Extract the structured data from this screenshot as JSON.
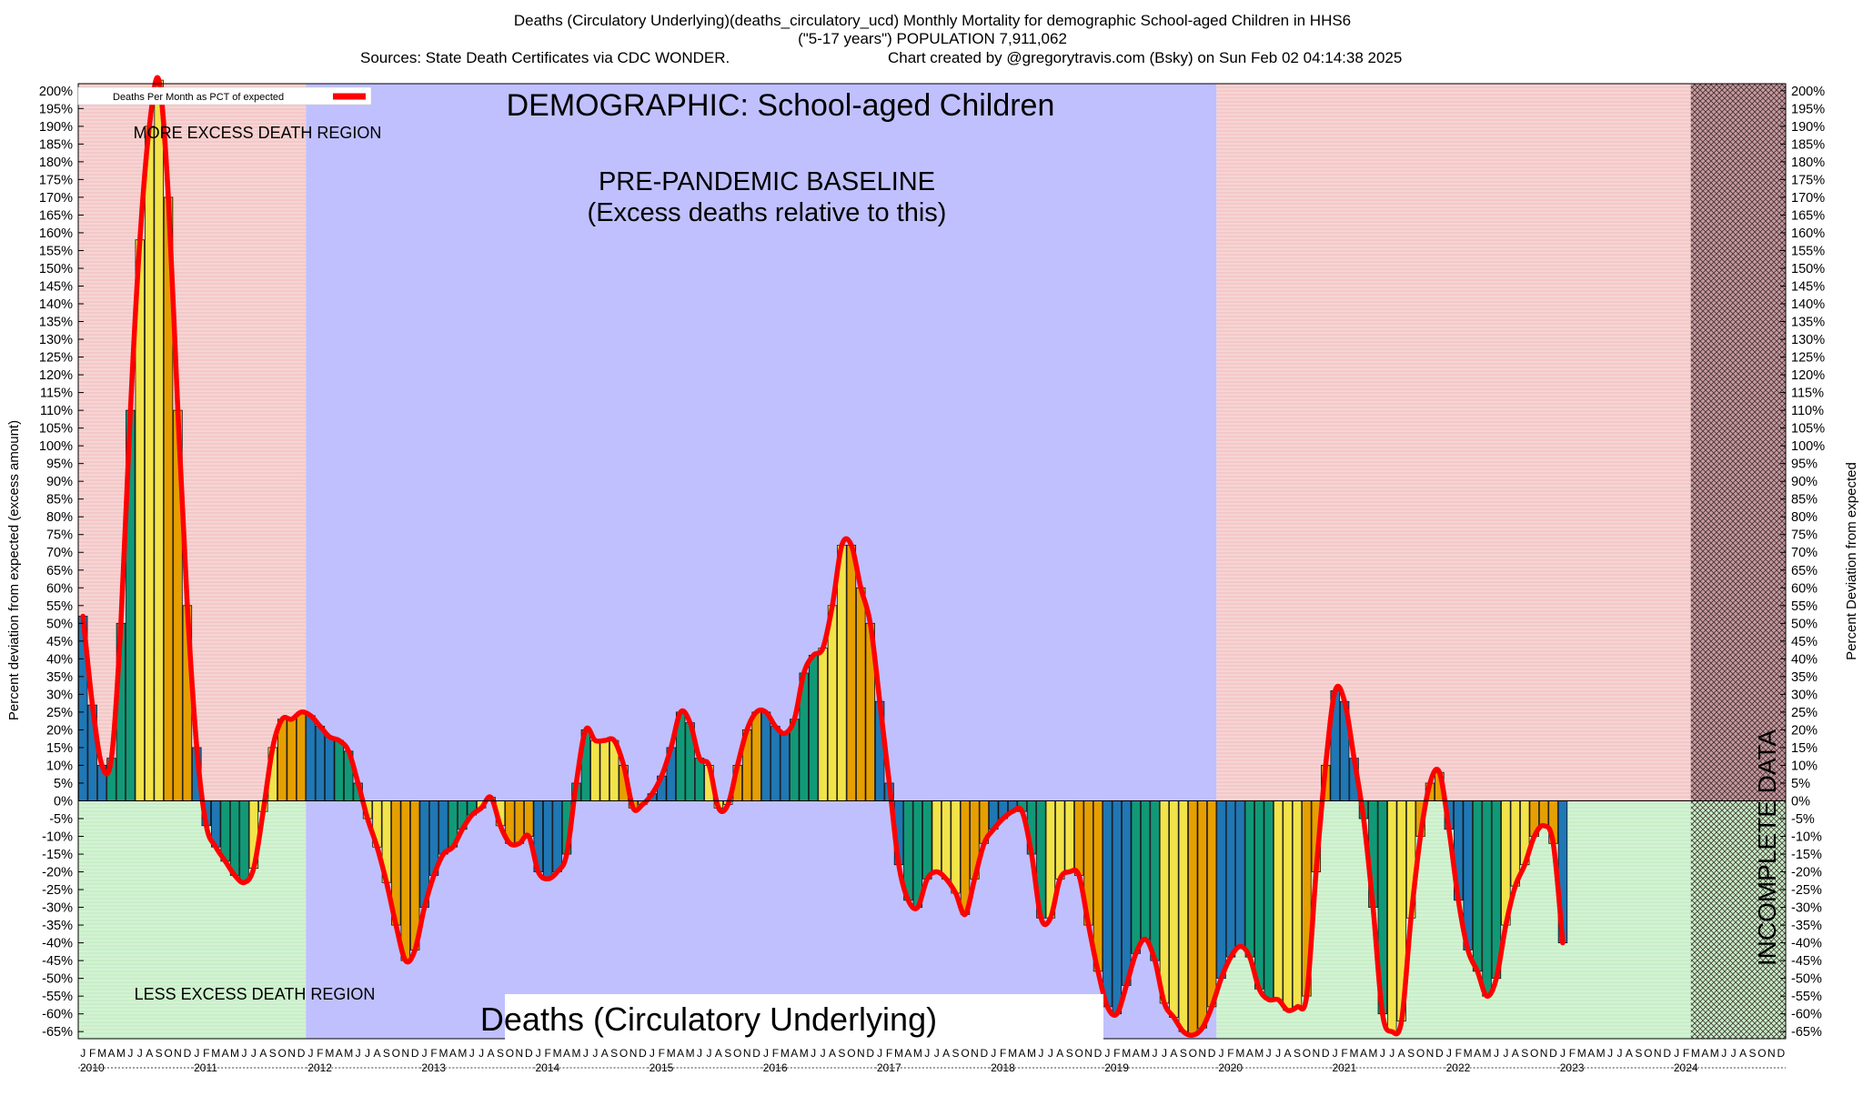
{
  "header": {
    "line1": "Deaths (Circulatory Underlying)(deaths_circulatory_ucd) Monthly Mortality for demographic School-aged Children in HHS6",
    "line2": "(\"5-17 years\") POPULATION 7,911,062",
    "line3_left": "Sources: State Death Certificates via CDC WONDER.",
    "line3_right": "Chart created by @gregorytravis.com (Bsky) on Sun Feb 02 04:14:38 2025"
  },
  "annotations": {
    "demographic": "DEMOGRAPHIC: School-aged Children",
    "more_excess": "MORE EXCESS DEATH REGION",
    "less_excess": "LESS EXCESS DEATH REGION",
    "baseline_line1": "PRE-PANDEMIC BASELINE",
    "baseline_line2": "(Excess deaths relative to this)",
    "incomplete": "INCOMPLETE DATA",
    "metric_box": "Deaths (Circulatory Underlying)"
  },
  "legend": {
    "label": "Deaths Per Month as PCT of expected"
  },
  "colors": {
    "excess_region": "#f4c8c8",
    "less_region": "#c8efc8",
    "baseline_region": "#c0c0ff",
    "incomplete_region": "#c89aa0",
    "curve": "#ff0000",
    "bar_q1": "#1f77b4",
    "bar_q2": "#119977",
    "bar_q3": "#f2e34a",
    "bar_q4": "#e69f00"
  },
  "chart_data": {
    "type": "bar",
    "ylabel_left": "Percent deviation from expected (excess amount)",
    "ylabel_right": "Percent Deviation from expected",
    "ylim": [
      -67,
      202
    ],
    "yticks": [
      200,
      195,
      190,
      185,
      180,
      175,
      170,
      165,
      160,
      155,
      150,
      145,
      140,
      135,
      130,
      125,
      120,
      115,
      110,
      105,
      100,
      95,
      90,
      85,
      80,
      75,
      70,
      65,
      60,
      55,
      50,
      45,
      40,
      35,
      30,
      25,
      20,
      15,
      10,
      5,
      0,
      -5,
      -10,
      -15,
      -20,
      -25,
      -30,
      -35,
      -40,
      -45,
      -50,
      -55,
      -60,
      -65
    ],
    "ytick_suffix": "%",
    "month_letters": [
      "J",
      "F",
      "M",
      "A",
      "M",
      "J",
      "J",
      "A",
      "S",
      "O",
      "N",
      "D"
    ],
    "years": [
      "2010",
      "2011",
      "2012",
      "2013",
      "2014",
      "2015",
      "2016",
      "2017",
      "2018",
      "2019",
      "2020",
      "2021",
      "2022",
      "2023",
      "2024"
    ],
    "regions": {
      "baseline_start": "2012-01",
      "baseline_end": "2019-12",
      "incomplete_start": "2024-03"
    },
    "values": [
      52,
      27,
      10,
      12,
      50,
      110,
      158,
      190,
      203,
      170,
      110,
      55,
      15,
      -7,
      -13,
      -17,
      -21,
      -23,
      -19,
      -3,
      15,
      23,
      23,
      25,
      24,
      21,
      18,
      17,
      14,
      5,
      -5,
      -13,
      -23,
      -35,
      -45,
      -42,
      -30,
      -21,
      -15,
      -13,
      -8,
      -4,
      -2,
      1,
      -7,
      -12,
      -12,
      -10,
      -20,
      -22,
      -20,
      -15,
      5,
      20,
      17,
      17,
      17,
      10,
      -2,
      -1,
      2,
      7,
      15,
      25,
      22,
      12,
      10,
      -2,
      -1,
      10,
      20,
      25,
      25,
      21,
      19,
      23,
      36,
      41,
      43,
      55,
      72,
      72,
      60,
      50,
      28,
      5,
      -18,
      -28,
      -30,
      -22,
      -20,
      -22,
      -26,
      -32,
      -22,
      -12,
      -8,
      -5,
      -3,
      -3,
      -15,
      -33,
      -33,
      -22,
      -20,
      -21,
      -35,
      -48,
      -58,
      -60,
      -52,
      -43,
      -39,
      -45,
      -57,
      -61,
      -65,
      -66,
      -64,
      -58,
      -50,
      -44,
      -41,
      -44,
      -53,
      -56,
      -56,
      -59,
      -58,
      -55,
      -20,
      10,
      31,
      28,
      12,
      -5,
      -30,
      -60,
      -65,
      -62,
      -33,
      -10,
      5,
      8,
      -8,
      -28,
      -42,
      -48,
      -55,
      -50,
      -35,
      -24,
      -18,
      -10,
      -7,
      -12,
      -40
    ]
  }
}
